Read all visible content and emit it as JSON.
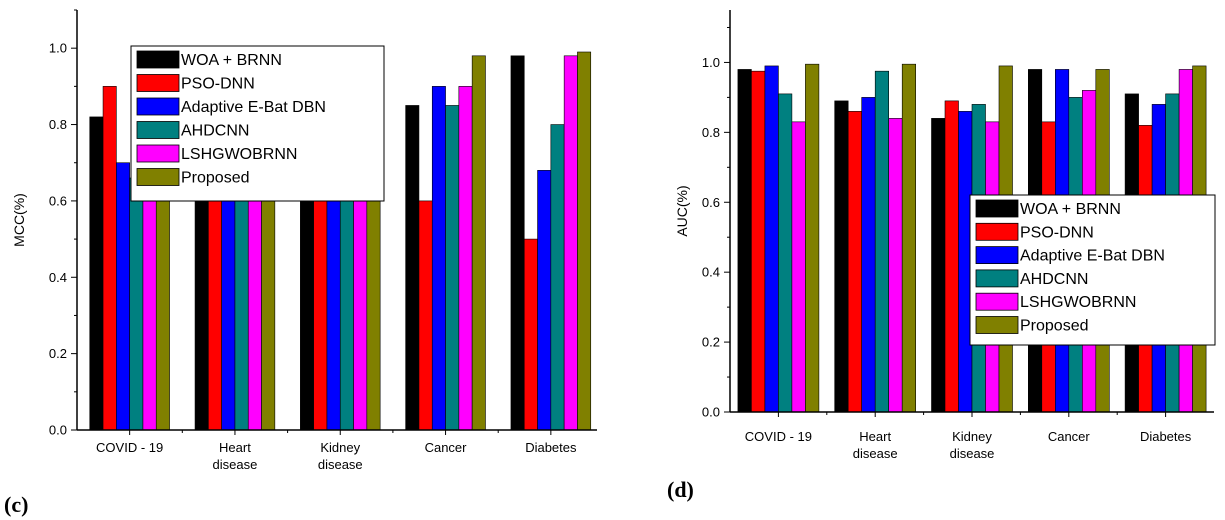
{
  "colors": {
    "WOA + BRNN": "#000000",
    "PSO-DNN": "#ff0000",
    "Adaptive E-Bat DBN": "#0000ff",
    "AHDCNN": "#008080",
    "LSHGWOBRNN": "#ff00ff",
    "Proposed": "#808000"
  },
  "chart_data": [
    {
      "type": "bar",
      "panel_label": "(c)",
      "ylabel": "MCC(%)",
      "ylim": [
        0,
        1.1
      ],
      "yticks": [
        "0.0",
        "0.2",
        "0.4",
        "0.6",
        "0.8",
        "1.0"
      ],
      "categories": [
        [
          "COVID - 19"
        ],
        [
          "Heart",
          "disease"
        ],
        [
          "Kidney",
          "disease"
        ],
        [
          "Cancer"
        ],
        [
          "Diabetes"
        ]
      ],
      "legend_position": "top-center",
      "series": [
        {
          "name": "WOA + BRNN",
          "values": [
            0.82,
            0.66,
            0.65,
            0.85,
            0.98
          ]
        },
        {
          "name": "PSO-DNN",
          "values": [
            0.9,
            0.64,
            0.64,
            0.6,
            0.5
          ]
        },
        {
          "name": "Adaptive E-Bat DBN",
          "values": [
            0.7,
            0.62,
            0.62,
            0.9,
            0.68
          ]
        },
        {
          "name": "AHDCNN",
          "values": [
            0.66,
            0.62,
            0.62,
            0.85,
            0.8
          ]
        },
        {
          "name": "LSHGWOBRNN",
          "values": [
            0.66,
            0.64,
            0.64,
            0.9,
            0.98
          ]
        },
        {
          "name": "Proposed",
          "values": [
            0.66,
            0.64,
            0.64,
            0.98,
            0.99
          ]
        }
      ]
    },
    {
      "type": "bar",
      "panel_label": "(d)",
      "ylabel": "AUC(%)",
      "ylim": [
        0,
        1.15
      ],
      "yticks": [
        "0.0",
        "0.2",
        "0.4",
        "0.6",
        "0.8",
        "1.0"
      ],
      "categories": [
        [
          "COVID - 19"
        ],
        [
          "Heart",
          "disease"
        ],
        [
          "Kidney",
          "disease"
        ],
        [
          "Cancer"
        ],
        [
          "Diabetes"
        ]
      ],
      "legend_position": "bottom-right",
      "series": [
        {
          "name": "WOA + BRNN",
          "values": [
            0.98,
            0.89,
            0.84,
            0.98,
            0.91
          ]
        },
        {
          "name": "PSO-DNN",
          "values": [
            0.975,
            0.86,
            0.89,
            0.83,
            0.82
          ]
        },
        {
          "name": "Adaptive E-Bat DBN",
          "values": [
            0.99,
            0.9,
            0.86,
            0.98,
            0.88
          ]
        },
        {
          "name": "AHDCNN",
          "values": [
            0.91,
            0.975,
            0.88,
            0.9,
            0.91
          ]
        },
        {
          "name": "LSHGWOBRNN",
          "values": [
            0.83,
            0.84,
            0.83,
            0.92,
            0.98
          ]
        },
        {
          "name": "Proposed",
          "values": [
            0.995,
            0.995,
            0.99,
            0.98,
            0.99
          ]
        }
      ]
    }
  ]
}
